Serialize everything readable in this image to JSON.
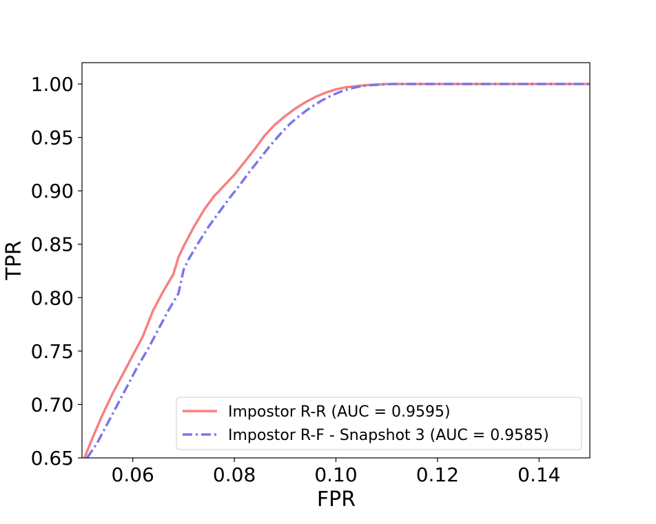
{
  "chart_data": {
    "type": "line",
    "title": "",
    "xlabel": "FPR",
    "ylabel": "TPR",
    "xlim": [
      0.05,
      0.15
    ],
    "ylim": [
      0.65,
      1.02
    ],
    "xticks": [
      0.06,
      0.08,
      0.1,
      0.12,
      0.14
    ],
    "xtick_labels": [
      "0.06",
      "0.08",
      "0.10",
      "0.12",
      "0.14"
    ],
    "yticks": [
      0.65,
      0.7,
      0.75,
      0.8,
      0.85,
      0.9,
      0.95,
      1.0
    ],
    "ytick_labels": [
      "0.65",
      "0.70",
      "0.75",
      "0.80",
      "0.85",
      "0.90",
      "0.95",
      "1.00"
    ],
    "grid": false,
    "legend_position": "bottom-right",
    "series": [
      {
        "name": "Impostor R-R (AUC = 0.9595)",
        "color": "#f87f7f",
        "dash": "solid",
        "x": [
          0.0505,
          0.052,
          0.054,
          0.056,
          0.058,
          0.06,
          0.062,
          0.064,
          0.066,
          0.068,
          0.069,
          0.07,
          0.072,
          0.074,
          0.076,
          0.078,
          0.08,
          0.082,
          0.084,
          0.086,
          0.088,
          0.09,
          0.092,
          0.094,
          0.096,
          0.098,
          0.1,
          0.102,
          0.104,
          0.106,
          0.108,
          0.11,
          0.115,
          0.12,
          0.13,
          0.14,
          0.15
        ],
        "y": [
          0.65,
          0.668,
          0.69,
          0.71,
          0.728,
          0.746,
          0.764,
          0.788,
          0.806,
          0.822,
          0.838,
          0.848,
          0.866,
          0.882,
          0.895,
          0.905,
          0.915,
          0.927,
          0.939,
          0.952,
          0.962,
          0.97,
          0.977,
          0.983,
          0.988,
          0.992,
          0.995,
          0.997,
          0.998,
          0.999,
          0.9995,
          1.0,
          1.0,
          1.0,
          1.0,
          1.0,
          1.0
        ]
      },
      {
        "name": "Impostor R-F - Snapshot 3 (AUC = 0.9585)",
        "color": "#7777ee",
        "dash": "dashdot",
        "x": [
          0.051,
          0.053,
          0.055,
          0.057,
          0.059,
          0.061,
          0.063,
          0.065,
          0.067,
          0.069,
          0.07,
          0.071,
          0.073,
          0.075,
          0.077,
          0.079,
          0.081,
          0.083,
          0.085,
          0.087,
          0.089,
          0.091,
          0.093,
          0.095,
          0.097,
          0.099,
          0.101,
          0.103,
          0.105,
          0.107,
          0.109,
          0.111,
          0.115,
          0.12,
          0.13,
          0.14,
          0.15
        ],
        "y": [
          0.65,
          0.664,
          0.682,
          0.7,
          0.718,
          0.736,
          0.752,
          0.77,
          0.788,
          0.804,
          0.826,
          0.836,
          0.852,
          0.867,
          0.88,
          0.893,
          0.905,
          0.918,
          0.93,
          0.942,
          0.953,
          0.963,
          0.971,
          0.978,
          0.984,
          0.989,
          0.993,
          0.996,
          0.998,
          0.999,
          0.9995,
          1.0,
          1.0,
          1.0,
          1.0,
          1.0,
          1.0
        ]
      }
    ]
  }
}
